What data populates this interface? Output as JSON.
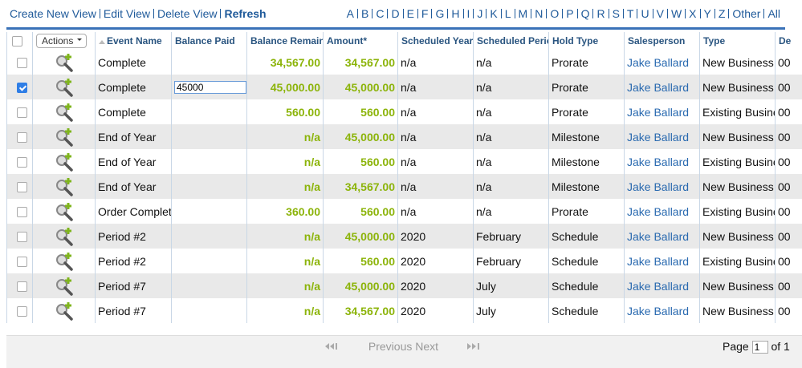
{
  "toolbar": {
    "links": [
      "Create New View",
      "Edit View",
      "Delete View",
      "Refresh"
    ]
  },
  "alphabet": [
    "A",
    "B",
    "C",
    "D",
    "E",
    "F",
    "G",
    "H",
    "I",
    "J",
    "K",
    "L",
    "M",
    "N",
    "O",
    "P",
    "Q",
    "R",
    "S",
    "T",
    "U",
    "V",
    "W",
    "X",
    "Y",
    "Z",
    "Other",
    "All"
  ],
  "table": {
    "headers": [
      "Actions",
      "Event Name",
      "Balance Paid",
      "Balance Remaining",
      "Amount*",
      "Scheduled Year",
      "Scheduled Period",
      "Hold Type",
      "Salesperson",
      "Type",
      "De"
    ],
    "checked": [
      false,
      true,
      false,
      false,
      false,
      false,
      false,
      false,
      false,
      false,
      false
    ],
    "rows": [
      [
        "Complete",
        null,
        "34,567.00",
        "34,567.00",
        "n/a",
        "n/a",
        "Prorate",
        "Jake Ballard",
        "New Business",
        "00"
      ],
      [
        "Complete",
        "45000",
        "45,000.00",
        "45,000.00",
        "n/a",
        "n/a",
        "Prorate",
        "Jake Ballard",
        "New Business",
        "00"
      ],
      [
        "Complete",
        null,
        "560.00",
        "560.00",
        "n/a",
        "n/a",
        "Prorate",
        "Jake Ballard",
        "Existing Business",
        "00"
      ],
      [
        "End of Year",
        null,
        "n/a",
        "45,000.00",
        "n/a",
        "n/a",
        "Milestone",
        "Jake Ballard",
        "New Business",
        "00"
      ],
      [
        "End of Year",
        null,
        "n/a",
        "560.00",
        "n/a",
        "n/a",
        "Milestone",
        "Jake Ballard",
        "Existing Business",
        "00"
      ],
      [
        "End of Year",
        null,
        "n/a",
        "34,567.00",
        "n/a",
        "n/a",
        "Milestone",
        "Jake Ballard",
        "New Business",
        "00"
      ],
      [
        "Order Complete",
        null,
        "360.00",
        "560.00",
        "n/a",
        "n/a",
        "Prorate",
        "Jake Ballard",
        "Existing Business",
        "00"
      ],
      [
        "Period #2",
        null,
        "n/a",
        "45,000.00",
        "2020",
        "February",
        "Schedule",
        "Jake Ballard",
        "New Business",
        "00"
      ],
      [
        "Period #2",
        null,
        "n/a",
        "560.00",
        "2020",
        "February",
        "Schedule",
        "Jake Ballard",
        "Existing Business",
        "00"
      ],
      [
        "Period #7",
        null,
        "n/a",
        "45,000.00",
        "2020",
        "July",
        "Schedule",
        "Jake Ballard",
        "New Business",
        "00"
      ],
      [
        "Period #7",
        null,
        "n/a",
        "34,567.00",
        "2020",
        "July",
        "Schedule",
        "Jake Ballard",
        "New Business",
        "00"
      ]
    ]
  },
  "footer": {
    "previous": "Previous",
    "next": "Next",
    "page_label": "Page",
    "page": "1",
    "of": "of 1"
  }
}
